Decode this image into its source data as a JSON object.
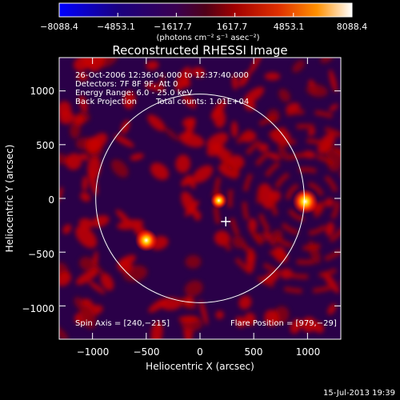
{
  "colorbar": {
    "tick_labels": [
      "−8088.4",
      "−4853.1",
      "−1617.7",
      "1617.7",
      "4853.1",
      "8088.4"
    ],
    "units": "(photons cm⁻² s⁻¹ asec⁻²)",
    "min": -8088.4,
    "max": 8088.4
  },
  "chart_data": {
    "type": "heatmap",
    "title": "Reconstructed RHESSI Image",
    "xlabel": "Heliocentric X (arcsec)",
    "ylabel": "Heliocentric Y (arcsec)",
    "xlim": [
      -1310,
      1310
    ],
    "ylim": [
      -1310,
      1310
    ],
    "x_ticks": [
      -1000,
      -500,
      0,
      500,
      1000
    ],
    "y_ticks": [
      -1000,
      -500,
      0,
      500,
      1000
    ],
    "x_tick_labels": [
      "−1000",
      "−500",
      "0",
      "500",
      "1000"
    ],
    "y_tick_labels": [
      "−1000",
      "−500",
      "0",
      "500",
      "1000"
    ],
    "solar_limb_radius": 970,
    "sources": [
      {
        "x": 979,
        "y": -29,
        "peak": 8088.4
      },
      {
        "x": -500,
        "y": -390,
        "peak": 6500
      },
      {
        "x": 175,
        "y": -20,
        "peak": 3500
      }
    ],
    "spin_axis_marker": {
      "x": 240,
      "y": -215
    },
    "annotations": [
      "26-Oct-2006 12:36:04.000 to 12:37:40.000",
      "Detectors: 7F 8F 9F, Att 0",
      "Energy Range: 6.0 - 25.0 keV",
      "Back Projection",
      "Total counts: 1.01E+04",
      "Spin Axis = [240,−215]",
      "Flare Position = [979,−29]"
    ],
    "grid": false
  },
  "footer": {
    "timestamp": "15-Jul-2013 19:39"
  }
}
